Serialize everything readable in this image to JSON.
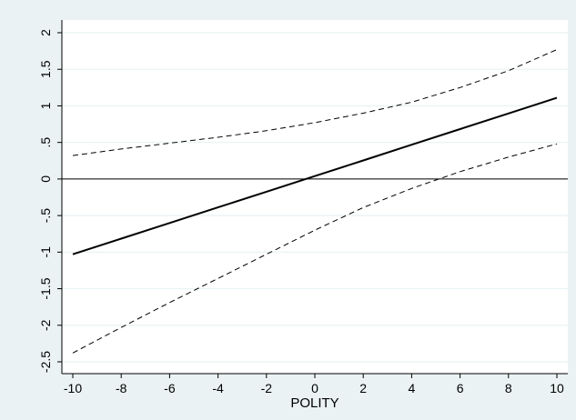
{
  "chart_data": {
    "type": "line",
    "title": "",
    "xlabel": "POLITY",
    "ylabel": "",
    "xlim": [
      -10,
      10
    ],
    "ylim": [
      -2.5,
      2
    ],
    "xticks": [
      "-10",
      "-8",
      "-6",
      "-4",
      "-2",
      "0",
      "2",
      "4",
      "6",
      "8",
      "10"
    ],
    "yticks": [
      "-2.5",
      "-2",
      "-1.5",
      "-1",
      "-.5",
      "0",
      ".5",
      "1",
      "1.5",
      "2"
    ],
    "reference_line_y": 0,
    "grid": "horizontal",
    "legend": "none",
    "series": [
      {
        "style": "solid",
        "x": [
          -10,
          -8,
          -6,
          -4,
          -2,
          0,
          2,
          4,
          6,
          8,
          10
        ],
        "y": [
          -1.03,
          -0.816,
          -0.602,
          -0.388,
          -0.174,
          0.04,
          0.254,
          0.468,
          0.682,
          0.896,
          1.11
        ]
      },
      {
        "style": "dashed",
        "x": [
          -10,
          -8,
          -6,
          -4,
          -2,
          0,
          2,
          4,
          6,
          8,
          10
        ],
        "y": [
          0.32,
          0.41,
          0.49,
          0.57,
          0.66,
          0.77,
          0.9,
          1.05,
          1.25,
          1.48,
          1.77
        ]
      },
      {
        "style": "dashed",
        "x": [
          -10,
          -8,
          -6,
          -4,
          -2,
          0,
          2,
          4,
          6,
          8,
          10
        ],
        "y": [
          -2.38,
          -2.03,
          -1.69,
          -1.36,
          -1.03,
          -0.7,
          -0.39,
          -0.13,
          0.1,
          0.3,
          0.48
        ]
      }
    ],
    "colors": {
      "background": "#eaf2f3",
      "plot_area": "#ffffff",
      "grid": "#eaf2f3",
      "line": "#000000"
    }
  }
}
